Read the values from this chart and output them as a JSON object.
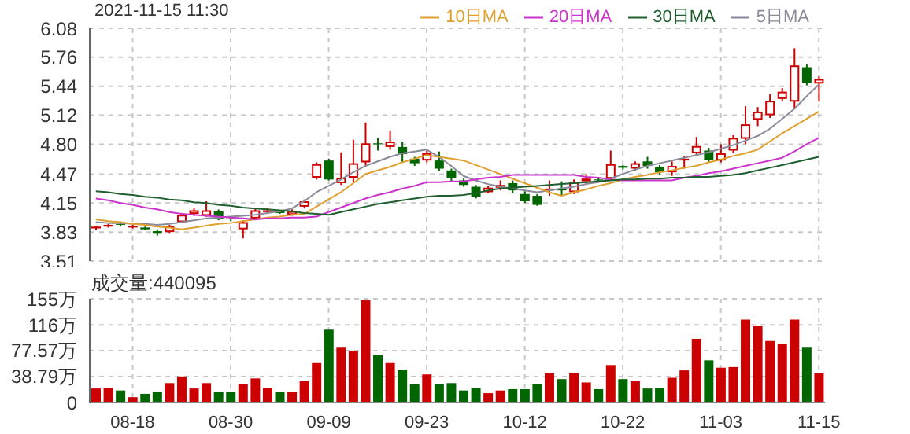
{
  "chart_data": [
    {
      "type": "candlestick",
      "title": "2021-11-15 11:30",
      "ohlc": [
        [
          3.87,
          3.9,
          3.85,
          3.89
        ],
        [
          3.89,
          3.92,
          3.88,
          3.91
        ],
        [
          3.92,
          3.93,
          3.89,
          3.91
        ],
        [
          3.88,
          3.91,
          3.87,
          3.9
        ],
        [
          3.88,
          3.89,
          3.85,
          3.86
        ],
        [
          3.84,
          3.86,
          3.79,
          3.82
        ],
        [
          3.83,
          3.91,
          3.82,
          3.9
        ],
        [
          3.94,
          4.04,
          3.93,
          4.02
        ],
        [
          4.03,
          4.09,
          4.01,
          4.07
        ],
        [
          4.01,
          4.17,
          4.0,
          4.07
        ],
        [
          4.06,
          4.08,
          3.96,
          3.97
        ],
        [
          3.98,
          3.99,
          3.95,
          3.97
        ],
        [
          3.86,
          3.96,
          3.76,
          3.94
        ],
        [
          3.98,
          4.1,
          3.96,
          4.07
        ],
        [
          4.05,
          4.1,
          4.03,
          4.07
        ],
        [
          4.06,
          4.07,
          4.03,
          4.04
        ],
        [
          4.02,
          4.08,
          4.01,
          4.06
        ],
        [
          4.11,
          4.19,
          4.09,
          4.17
        ],
        [
          4.43,
          4.6,
          4.41,
          4.58
        ],
        [
          4.62,
          4.64,
          4.4,
          4.41
        ],
        [
          4.37,
          4.71,
          4.35,
          4.43
        ],
        [
          4.43,
          4.85,
          4.38,
          4.59
        ],
        [
          4.6,
          5.04,
          4.55,
          4.81
        ],
        [
          4.81,
          4.87,
          4.73,
          4.8
        ],
        [
          4.77,
          4.95,
          4.74,
          4.83
        ],
        [
          4.77,
          4.83,
          4.6,
          4.69
        ],
        [
          4.64,
          4.66,
          4.56,
          4.59
        ],
        [
          4.62,
          4.73,
          4.6,
          4.7
        ],
        [
          4.62,
          4.72,
          4.5,
          4.53
        ],
        [
          4.51,
          4.53,
          4.38,
          4.43
        ],
        [
          4.4,
          4.42,
          4.33,
          4.35
        ],
        [
          4.33,
          4.35,
          4.2,
          4.22
        ],
        [
          4.27,
          4.34,
          4.26,
          4.32
        ],
        [
          4.32,
          4.4,
          4.29,
          4.35
        ],
        [
          4.37,
          4.4,
          4.26,
          4.29
        ],
        [
          4.25,
          4.28,
          4.15,
          4.17
        ],
        [
          4.23,
          4.25,
          4.12,
          4.13
        ],
        [
          4.29,
          4.4,
          4.23,
          4.31
        ],
        [
          4.3,
          4.39,
          4.23,
          4.29
        ],
        [
          4.27,
          4.41,
          4.25,
          4.38
        ],
        [
          4.39,
          4.47,
          4.35,
          4.42
        ],
        [
          4.41,
          4.43,
          4.38,
          4.4
        ],
        [
          4.42,
          4.73,
          4.4,
          4.58
        ],
        [
          4.56,
          4.57,
          4.52,
          4.54
        ],
        [
          4.53,
          4.61,
          4.51,
          4.59
        ],
        [
          4.61,
          4.66,
          4.53,
          4.56
        ],
        [
          4.55,
          4.57,
          4.46,
          4.49
        ],
        [
          4.49,
          4.61,
          4.45,
          4.56
        ],
        [
          4.62,
          4.67,
          4.53,
          4.64
        ],
        [
          4.7,
          4.88,
          4.68,
          4.78
        ],
        [
          4.73,
          4.76,
          4.6,
          4.63
        ],
        [
          4.62,
          4.8,
          4.6,
          4.7
        ],
        [
          4.73,
          4.9,
          4.7,
          4.87
        ],
        [
          4.86,
          5.22,
          4.8,
          5.02
        ],
        [
          5.07,
          5.21,
          5.0,
          5.16
        ],
        [
          5.12,
          5.35,
          5.09,
          5.28
        ],
        [
          5.3,
          5.42,
          5.28,
          5.38
        ],
        [
          5.27,
          5.86,
          5.2,
          5.67
        ],
        [
          5.65,
          5.68,
          5.45,
          5.48
        ],
        [
          5.47,
          5.55,
          5.27,
          5.52
        ]
      ],
      "colors": [
        "#cc0000",
        "#cc0000",
        "#006600",
        "#cc0000",
        "#006600",
        "#006600",
        "#cc0000",
        "#cc0000",
        "#cc0000",
        "#cc0000",
        "#006600",
        "#006600",
        "#cc0000",
        "#cc0000",
        "#cc0000",
        "#006600",
        "#cc0000",
        "#cc0000",
        "#cc0000",
        "#006600",
        "#cc0000",
        "#cc0000",
        "#cc0000",
        "#006600",
        "#cc0000",
        "#006600",
        "#006600",
        "#cc0000",
        "#006600",
        "#006600",
        "#006600",
        "#006600",
        "#cc0000",
        "#cc0000",
        "#006600",
        "#006600",
        "#006600",
        "#cc0000",
        "#006600",
        "#cc0000",
        "#cc0000",
        "#006600",
        "#cc0000",
        "#006600",
        "#cc0000",
        "#006600",
        "#006600",
        "#cc0000",
        "#cc0000",
        "#cc0000",
        "#006600",
        "#cc0000",
        "#cc0000",
        "#cc0000",
        "#cc0000",
        "#cc0000",
        "#cc0000",
        "#cc0000",
        "#006600",
        "#cc0000"
      ],
      "series": [
        {
          "name": "5日MA",
          "type": "line",
          "color": "#8a8a9a",
          "values": [
            3.94,
            3.93,
            3.93,
            3.92,
            3.92,
            3.91,
            3.92,
            3.94,
            3.96,
            3.98,
            3.99,
            4.0,
            4.01,
            4.02,
            4.04,
            4.06,
            4.09,
            4.17,
            4.27,
            4.34,
            4.41,
            4.49,
            4.56,
            4.61,
            4.66,
            4.7,
            4.72,
            4.74,
            4.66,
            4.56,
            4.45,
            4.4,
            4.36,
            4.33,
            4.31,
            4.29,
            4.27,
            4.29,
            4.31,
            4.33,
            4.36,
            4.38,
            4.42,
            4.47,
            4.52,
            4.56,
            4.59,
            4.62,
            4.65,
            4.68,
            4.71,
            4.75,
            4.79,
            4.84,
            4.89,
            4.97,
            5.08,
            5.19,
            5.33,
            5.46
          ]
        },
        {
          "name": "10日MA",
          "type": "line",
          "color": "#e0a030",
          "values": [
            3.97,
            3.95,
            3.94,
            3.92,
            3.91,
            3.89,
            3.88,
            3.86,
            3.88,
            3.9,
            3.92,
            3.93,
            3.95,
            3.97,
            3.99,
            4.0,
            4.02,
            4.03,
            4.11,
            4.19,
            4.27,
            4.37,
            4.47,
            4.51,
            4.55,
            4.6,
            4.64,
            4.68,
            4.66,
            4.64,
            4.62,
            4.57,
            4.52,
            4.47,
            4.42,
            4.37,
            4.32,
            4.27,
            4.23,
            4.27,
            4.3,
            4.34,
            4.37,
            4.41,
            4.44,
            4.46,
            4.49,
            4.51,
            4.54,
            4.56,
            4.6,
            4.63,
            4.67,
            4.7,
            4.74,
            4.83,
            4.92,
            5.0,
            5.08,
            5.16
          ]
        },
        {
          "name": "20日MA",
          "type": "line",
          "color": "#cc33cc",
          "values": [
            4.2,
            4.18,
            4.15,
            4.13,
            4.1,
            4.08,
            4.05,
            4.03,
            4.02,
            4.01,
            4.0,
            3.99,
            3.98,
            3.97,
            3.98,
            3.98,
            3.99,
            3.99,
            4.0,
            4.05,
            4.1,
            4.15,
            4.2,
            4.24,
            4.27,
            4.31,
            4.34,
            4.38,
            4.38,
            4.39,
            4.39,
            4.41,
            4.43,
            4.44,
            4.46,
            4.46,
            4.46,
            4.46,
            4.46,
            4.46,
            4.44,
            4.43,
            4.41,
            4.4,
            4.4,
            4.4,
            4.4,
            4.4,
            4.43,
            4.45,
            4.48,
            4.5,
            4.53,
            4.56,
            4.59,
            4.62,
            4.65,
            4.72,
            4.8,
            4.87
          ]
        },
        {
          "name": "30日MA",
          "type": "line",
          "color": "#1f5f2f",
          "values": [
            4.28,
            4.27,
            4.25,
            4.24,
            4.22,
            4.21,
            4.19,
            4.18,
            4.16,
            4.15,
            4.13,
            4.12,
            4.1,
            4.09,
            4.08,
            4.07,
            4.06,
            4.04,
            4.03,
            4.02,
            4.05,
            4.08,
            4.11,
            4.14,
            4.16,
            4.18,
            4.2,
            4.22,
            4.23,
            4.23,
            4.24,
            4.26,
            4.29,
            4.31,
            4.32,
            4.33,
            4.34,
            4.35,
            4.36,
            4.37,
            4.38,
            4.39,
            4.4,
            4.41,
            4.41,
            4.42,
            4.42,
            4.43,
            4.43,
            4.44,
            4.44,
            4.45,
            4.46,
            4.48,
            4.51,
            4.54,
            4.57,
            4.6,
            4.63,
            4.66
          ]
        }
      ],
      "ylim": [
        3.51,
        6.08
      ],
      "yticks": [
        3.51,
        3.83,
        4.15,
        4.47,
        {
          "value": 4.8,
          "label": "4.80"
        },
        5.12,
        5.44,
        5.76,
        6.08
      ],
      "grid": true,
      "legend": "top right",
      "marker": "none",
      "tick_labels": "y"
    },
    {
      "type": "bar",
      "annotations": [
        "成交量:440095"
      ],
      "categories": [
        null,
        null,
        null,
        "08-18",
        null,
        null,
        null,
        null,
        null,
        null,
        null,
        "08-30",
        null,
        null,
        null,
        null,
        null,
        null,
        null,
        "09-09",
        null,
        null,
        null,
        null,
        null,
        null,
        null,
        "09-23",
        null,
        null,
        null,
        null,
        null,
        null,
        null,
        "10-12",
        null,
        null,
        null,
        null,
        null,
        null,
        null,
        "10-22",
        null,
        null,
        null,
        null,
        null,
        null,
        null,
        "11-03",
        null,
        null,
        null,
        null,
        null,
        null,
        null,
        "11-15"
      ],
      "values": [
        21,
        22,
        18,
        8,
        13,
        16,
        29,
        39,
        21,
        29,
        16,
        16,
        27,
        36,
        22,
        16,
        16,
        32,
        59,
        109,
        83,
        77,
        153,
        71,
        59,
        49,
        27,
        42,
        27,
        29,
        18,
        22,
        14,
        18,
        20,
        20,
        27,
        44,
        35,
        44,
        30,
        20,
        56,
        35,
        32,
        21,
        22,
        37,
        48,
        95,
        63,
        52,
        53,
        124,
        114,
        92,
        88,
        124,
        83,
        44
      ],
      "colors": [
        "#cc0000",
        "#cc0000",
        "#006600",
        "#cc0000",
        "#006600",
        "#006600",
        "#cc0000",
        "#cc0000",
        "#cc0000",
        "#cc0000",
        "#006600",
        "#006600",
        "#cc0000",
        "#cc0000",
        "#cc0000",
        "#006600",
        "#cc0000",
        "#cc0000",
        "#cc0000",
        "#006600",
        "#cc0000",
        "#cc0000",
        "#cc0000",
        "#006600",
        "#cc0000",
        "#006600",
        "#006600",
        "#cc0000",
        "#006600",
        "#006600",
        "#006600",
        "#006600",
        "#cc0000",
        "#cc0000",
        "#006600",
        "#006600",
        "#006600",
        "#cc0000",
        "#006600",
        "#cc0000",
        "#cc0000",
        "#006600",
        "#cc0000",
        "#006600",
        "#cc0000",
        "#006600",
        "#006600",
        "#cc0000",
        "#cc0000",
        "#cc0000",
        "#006600",
        "#cc0000",
        "#cc0000",
        "#cc0000",
        "#cc0000",
        "#cc0000",
        "#cc0000",
        "#cc0000",
        "#006600",
        "#cc0000"
      ],
      "ylim": [
        0,
        155
      ],
      "yticks": [
        0,
        {
          "value": 38.79,
          "label": "38.79万"
        },
        {
          "value": 77.57,
          "label": "77.57万"
        },
        {
          "value": 116,
          "label": "116万"
        },
        {
          "value": 155,
          "label": "155万"
        }
      ],
      "grid": true
    }
  ]
}
